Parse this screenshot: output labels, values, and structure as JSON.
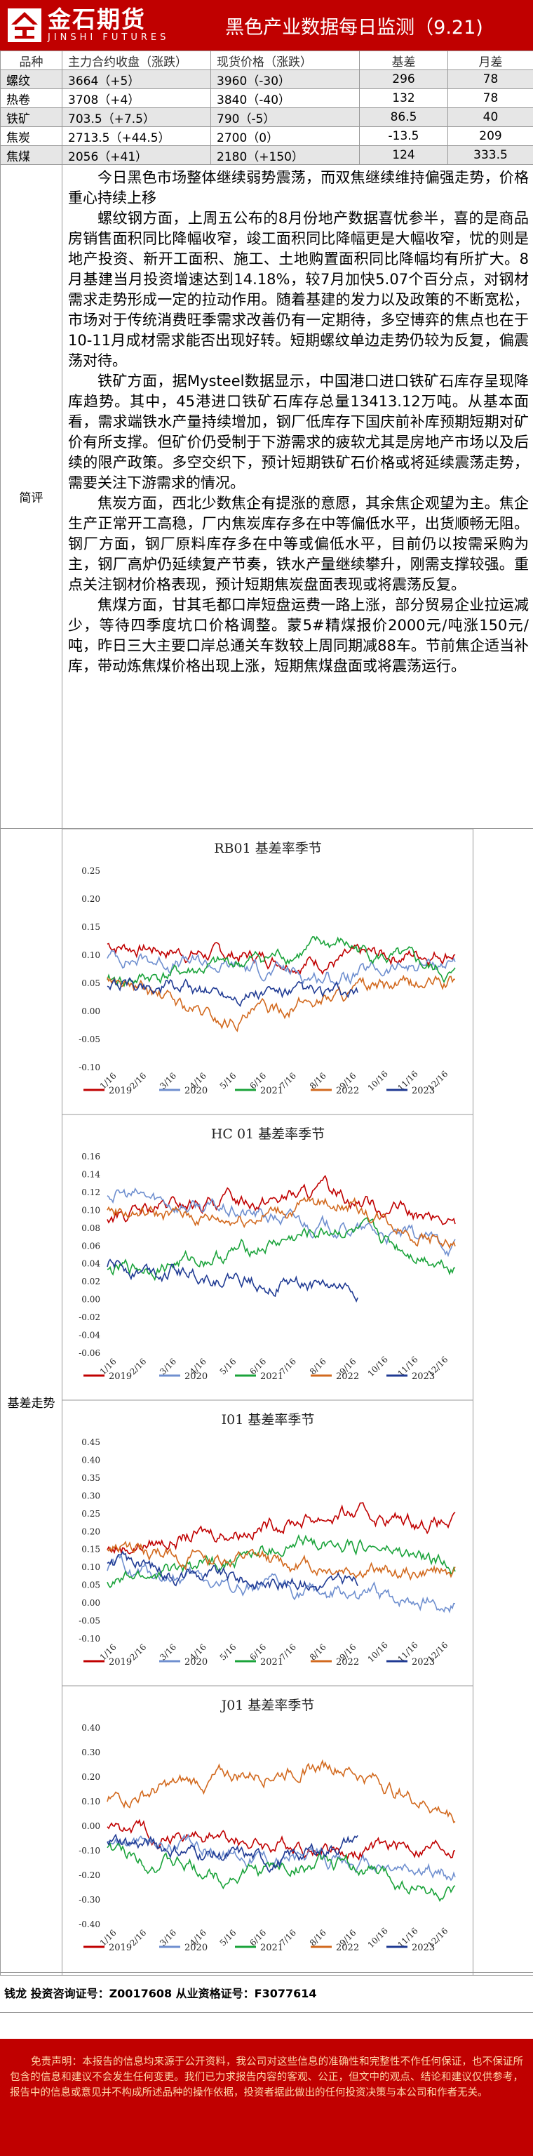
{
  "header": {
    "logo_cn": "金石期货",
    "logo_en": "JINSHI FUTURES",
    "title": "黑色产业数据每日监测（9.21)"
  },
  "table": {
    "columns": [
      "品种",
      "主力合约收盘（涨跌）",
      "现货价格（涨跌）",
      "基差",
      "月差"
    ],
    "rows": [
      {
        "name": "螺纹",
        "close": "3664（+5）",
        "spot": "3960（-30）",
        "basis": "296",
        "spread": "78"
      },
      {
        "name": "热卷",
        "close": "3708（+4）",
        "spot": "3840（-40）",
        "basis": "132",
        "spread": "78"
      },
      {
        "name": "铁矿",
        "close": "703.5（+7.5）",
        "spot": "790（-5）",
        "basis": "86.5",
        "spread": "40"
      },
      {
        "name": "焦炭",
        "close": "2713.5（+44.5）",
        "spot": "2700（0）",
        "basis": "-13.5",
        "spread": "209"
      },
      {
        "name": "焦煤",
        "close": "2056（+41）",
        "spot": "2180（+150）",
        "basis": "124",
        "spread": "333.5"
      }
    ]
  },
  "summary": {
    "label": "简评",
    "paragraphs": [
      "今日黑色市场整体继续弱势震荡，而双焦继续维持偏强走势，价格重心持续上移",
      "螺纹钢方面，上周五公布的8月份地产数据喜忧参半，喜的是商品房销售面积同比降幅收窄，竣工面积同比降幅更是大幅收窄，忧的则是地产投资、新开工面积、施工、土地购置面积同比降幅均有所扩大。8月基建当月投资增速达到14.18%，较7月加快5.07个百分点，对钢材需求走势形成一定的拉动作用。随着基建的发力以及政策的不断宽松，市场对于传统消费旺季需求改善仍有一定期待，多空博弈的焦点也在于10-11月成材需求能否出现好转。短期螺纹单边走势仍较为反复，偏震荡对待。",
      "铁矿方面，据Mysteel数据显示，中国港口进口铁矿石库存呈现降库趋势。其中，45港进口铁矿石库存总量13413.12万吨。从基本面看，需求端铁水产量持续增加，钢厂低库存下国庆前补库预期短期对矿价有所支撑。但矿价仍受制于下游需求的疲软尤其是房地产市场以及后续的限产政策。多空交织下，预计短期铁矿石价格或将延续震荡走势，需要关注下游需求的情况。",
      "焦炭方面，西北少数焦企有提涨的意愿，其余焦企观望为主。焦企生产正常开工高稳，厂内焦炭库存多在中等偏低水平，出货顺畅无阻。钢厂方面，钢厂原料库存多在中等或偏低水平，目前仍以按需采购为主，钢厂高炉仍延续复产节奏，铁水产量继续攀升，刚需支撑较强。重点关注钢材价格表现，预计短期焦炭盘面表现或将震荡反复。",
      "焦煤方面，甘其毛都口岸短盘运费一路上涨，部分贸易企业拉运减少，等待四季度坑口价格调整。蒙5#精煤报价2000元/吨涨150元/吨，昨日三大主要口岸总通关车数较上周同期减88车。节前焦企适当补库，带动炼焦煤价格出现上涨，短期焦煤盘面或将震荡运行。"
    ]
  },
  "basis": {
    "label": "基差走势",
    "years": [
      "2019",
      "2020",
      "2021",
      "2022",
      "2023"
    ],
    "colors": {
      "2019": "#c00000",
      "2020": "#6f8fcf",
      "2021": "#1aa33a",
      "2022": "#d2691e",
      "2023": "#1f3a93"
    },
    "x_ticks": [
      "1/16",
      "2/16",
      "3/16",
      "4/16",
      "5/16",
      "6/16",
      "7/16",
      "8/16",
      "9/16",
      "10/16",
      "11/16",
      "12/16"
    ],
    "charts": [
      {
        "id": "rb01",
        "title": "RB01 基差率季节",
        "y_ticks": [
          "0.25",
          "0.20",
          "0.15",
          "0.10",
          "0.05",
          "0.00",
          "-0.05",
          "-0.10"
        ],
        "ylim": [
          -0.1,
          0.25
        ]
      },
      {
        "id": "hc01",
        "title": "HC 01 基差率季节",
        "y_ticks": [
          "0.16",
          "0.14",
          "0.12",
          "0.10",
          "0.08",
          "0.06",
          "0.04",
          "0.02",
          "0.00",
          "-0.02",
          "-0.04",
          "-0.06"
        ],
        "ylim": [
          -0.06,
          0.16
        ]
      },
      {
        "id": "i01",
        "title": "I01 基差率季节",
        "y_ticks": [
          "0.45",
          "0.40",
          "0.35",
          "0.30",
          "0.25",
          "0.20",
          "0.15",
          "0.10",
          "0.05",
          "0.00",
          "-0.05",
          "-0.10"
        ],
        "ylim": [
          -0.1,
          0.45
        ]
      },
      {
        "id": "j01",
        "title": "J01 基差率季节",
        "y_ticks": [
          "0.40",
          "0.30",
          "0.20",
          "0.10",
          "0.00",
          "-0.10",
          "-0.20",
          "-0.30",
          "-0.40"
        ],
        "ylim": [
          -0.4,
          0.4
        ]
      }
    ]
  },
  "footer": {
    "sign": "钱龙  投资咨询证号：Z0017608  从业资格证号：F3077614",
    "disclaimer": "免责声明：本报告的信息均来源于公开资料，我公司对这些信息的准确性和完整性不作任何保证，也不保证所包含的信息和建议不会发生任何变更。我们已力求报告内容的客观、公正，但文中的观点、结论和建议仅供参考，报告中的信息或意见并不构成所述品种的操作依据，投资者据此做出的任何投资决策与本公司和作者无关。"
  }
}
